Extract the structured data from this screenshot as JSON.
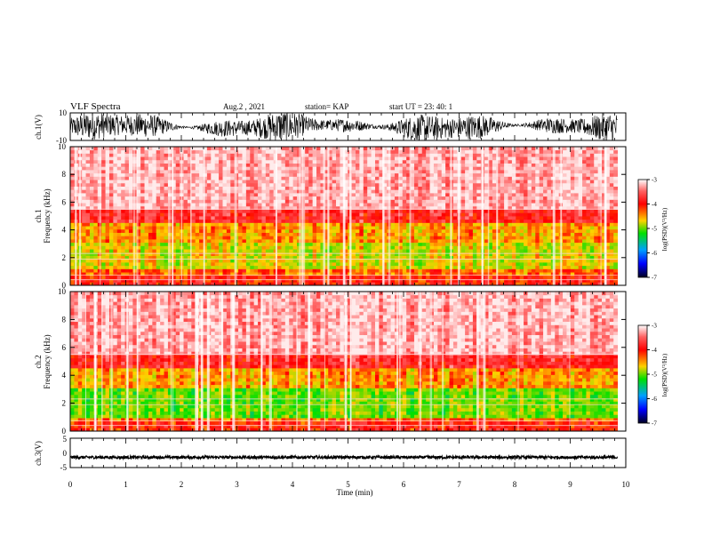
{
  "header": {
    "title": "VLF Spectra",
    "date": "Aug.2 , 2021",
    "station": "station= KAP",
    "start_ut": "start UT = 23: 40: 1"
  },
  "colorbars": {
    "label": "log(PSD)(V²/Hz)",
    "ticks": [
      "-3",
      "-4",
      "-5",
      "-6",
      "-7"
    ],
    "range": [
      -7,
      -3
    ]
  },
  "chart_data": [
    {
      "type": "line",
      "ylabel": "ch.1(V)",
      "ylim": [
        -10,
        10
      ],
      "yticks": [
        "10",
        "-10"
      ],
      "xlim": [
        0,
        10
      ],
      "description_values": {
        "amplitude_range": [
          -10,
          10
        ],
        "duration_min": 9.85
      }
    },
    {
      "type": "heatmap",
      "ylabel": "ch.1 Frequency (kHz)",
      "ylim": [
        0,
        10
      ],
      "yticks": [
        "0",
        "2",
        "4",
        "6",
        "8",
        "10"
      ],
      "xlim": [
        0,
        10
      ],
      "zlim": [
        -7,
        -3
      ],
      "bands_khz": [
        {
          "from": 0,
          "to": 0.6,
          "level": -4.0
        },
        {
          "from": 0.6,
          "to": 1.2,
          "level": -4.3
        },
        {
          "from": 1.2,
          "to": 3.2,
          "level": -4.8
        },
        {
          "from": 3.2,
          "to": 4.5,
          "level": -4.5
        },
        {
          "from": 4.5,
          "to": 5.5,
          "level": -3.8
        },
        {
          "from": 5.5,
          "to": 10,
          "level": -3.2
        }
      ],
      "data_end_min": 9.85
    },
    {
      "type": "heatmap",
      "ylabel": "ch.2 Frequency (kHz)",
      "ylim": [
        0,
        10
      ],
      "yticks": [
        "0",
        "2",
        "4",
        "6",
        "8",
        "10"
      ],
      "xlim": [
        0,
        10
      ],
      "zlim": [
        -7,
        -3
      ],
      "bands_khz": [
        {
          "from": 0,
          "to": 0.6,
          "level": -4.0
        },
        {
          "from": 0.6,
          "to": 1.0,
          "level": -4.3
        },
        {
          "from": 1.0,
          "to": 3.2,
          "level": -5.1
        },
        {
          "from": 3.2,
          "to": 4.5,
          "level": -4.5
        },
        {
          "from": 4.5,
          "to": 5.5,
          "level": -3.8
        },
        {
          "from": 5.5,
          "to": 10,
          "level": -3.2
        }
      ],
      "data_end_min": 9.85
    },
    {
      "type": "line",
      "ylabel": "ch.3(V)",
      "ylim": [
        -5,
        5
      ],
      "yticks": [
        "5",
        "0",
        "-5"
      ],
      "xlim": [
        0,
        10
      ],
      "xlabel": "Time (min)",
      "xticks": [
        "0",
        "1",
        "2",
        "3",
        "4",
        "5",
        "6",
        "7",
        "8",
        "9",
        "10"
      ],
      "description_values": {
        "baseline_v": -1.5,
        "amplitude_v": 0.5,
        "duration_min": 9.85
      }
    }
  ]
}
